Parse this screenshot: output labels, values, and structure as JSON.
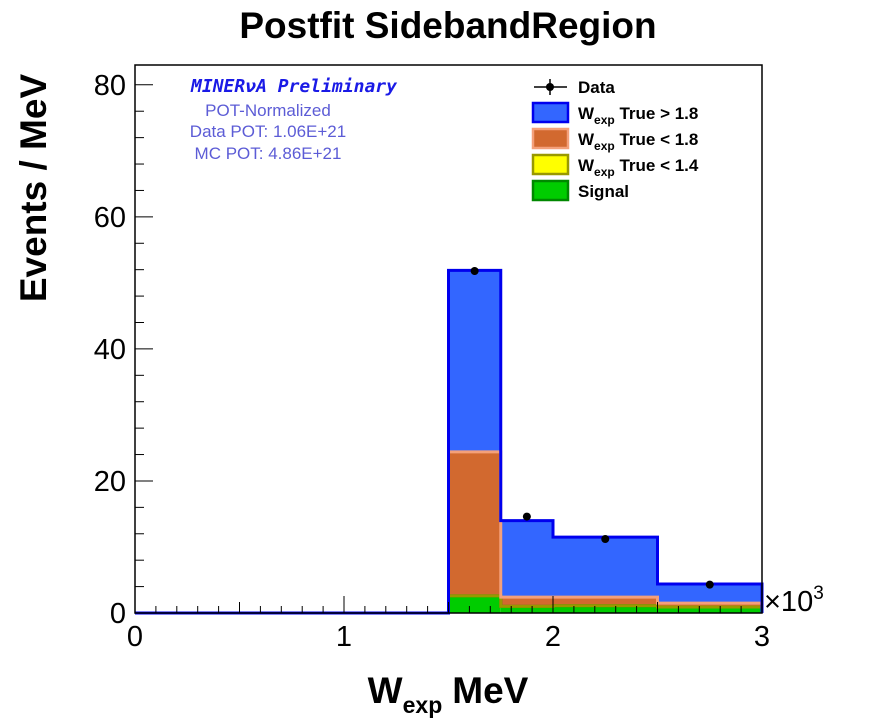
{
  "chart_data": {
    "type": "bar",
    "title": "Postfit SidebandRegion",
    "xlabel": {
      "main": "W",
      "sub": "exp",
      "unit": "MeV"
    },
    "ylabel": "Events / MeV",
    "x_multiplier": "×10",
    "x_multiplier_exp": "3",
    "xlim": [
      0,
      3
    ],
    "ylim": [
      0,
      83
    ],
    "x_ticks": [
      "0",
      "1",
      "2",
      "3"
    ],
    "y_ticks": [
      "0",
      "20",
      "40",
      "60",
      "80"
    ],
    "bin_edges": [
      0,
      1.5,
      1.75,
      2.0,
      2.5,
      3.0
    ],
    "stack_order": [
      "signal",
      "wlt14",
      "wlt18",
      "wgt18"
    ],
    "series": [
      {
        "key": "signal",
        "name": "Signal",
        "values": [
          0,
          2.6,
          1.0,
          1.1,
          0.9
        ],
        "fill": "#00cc00",
        "stroke": "#008800"
      },
      {
        "key": "wlt14",
        "name_main": "W",
        "name_sub": "exp",
        "name_rest": " True < 1.4",
        "values": [
          0,
          0,
          0,
          0,
          0
        ],
        "fill": "#ffff00",
        "stroke": "#999900"
      },
      {
        "key": "wlt18",
        "name_main": "W",
        "name_sub": "exp",
        "name_rest": " True < 1.8",
        "values": [
          0,
          21.8,
          1.4,
          1.3,
          0.6
        ],
        "fill": "#d2692f",
        "stroke": "#f4a07a"
      },
      {
        "key": "wgt18",
        "name_main": "W",
        "name_sub": "exp",
        "name_rest": " True > 1.8",
        "values": [
          0,
          27.5,
          11.6,
          9.1,
          2.9
        ],
        "fill": "#3366ff",
        "stroke": "#0000ee"
      }
    ],
    "data_points": {
      "name": "Data",
      "x": [
        1.625,
        1.875,
        2.25,
        2.75
      ],
      "y": [
        51.8,
        14.6,
        11.2,
        4.3
      ]
    },
    "legend_position": "top-right",
    "annotations": {
      "experiment": "MINERνA Preliminary",
      "line1": "POT-Normalized",
      "line2": "Data POT: 1.06E+21",
      "line3": "MC POT: 4.86E+21"
    }
  }
}
